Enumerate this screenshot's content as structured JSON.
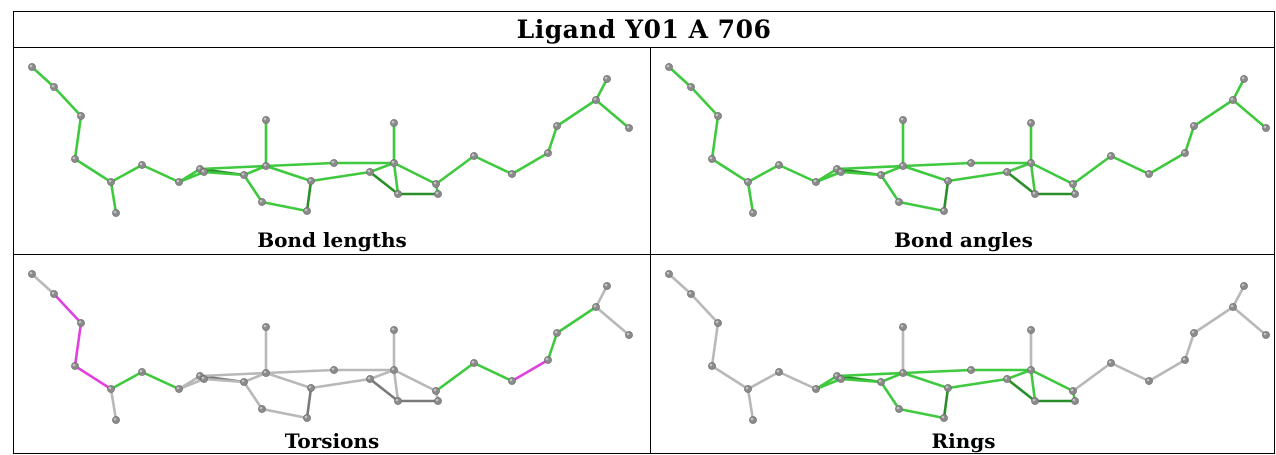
{
  "title": "Ligand Y01 A 706",
  "panels": [
    {
      "id": "bond-lengths",
      "caption": "Bond lengths"
    },
    {
      "id": "bond-angles",
      "caption": "Bond angles"
    },
    {
      "id": "torsions",
      "caption": "Torsions"
    },
    {
      "id": "rings",
      "caption": "Rings"
    }
  ],
  "colors": {
    "atom": "#8a8a8a",
    "atom_highlight": "#c4c4c4",
    "ok_bond": "#3fc93f",
    "ok_bond_dark": "#2a8f2a",
    "flagged_bond": "#e040e0",
    "neutral_bond": "#b8b8b8",
    "neutral_bond_dark": "#7a7a7a"
  }
}
